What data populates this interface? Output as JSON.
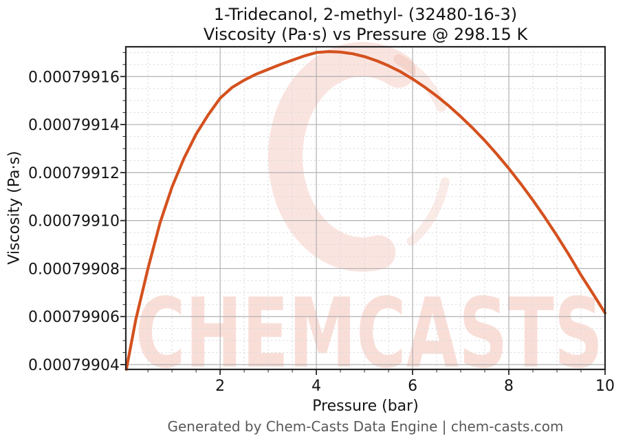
{
  "header": {
    "title_line1": "1-Tridecanol, 2-methyl- (32480-16-3)",
    "title_line2": "Viscosity (Pa·s) vs Pressure @ 298.15 K"
  },
  "footer": {
    "credit": "Generated by Chem-Casts Data Engine | chem-casts.com"
  },
  "watermark": {
    "text": "CHEMCASTS",
    "logo_icon": "chemcasts-c-swirl-logo"
  },
  "colors": {
    "line": "#d4511e",
    "watermark_pink": "#e25a3a",
    "grid_major": "#b0b0b0",
    "grid_minor": "#dadada",
    "spine": "#262626",
    "tick_text": "#141414",
    "footer_text": "#58585a"
  },
  "chart_data": {
    "type": "line",
    "title": "1-Tridecanol, 2-methyl- (32480-16-3) — Viscosity (Pa·s) vs Pressure @ 298.15 K",
    "compound": "1-Tridecanol, 2-methyl-",
    "cas_number": "32480-16-3",
    "temperature": "298.15 K",
    "xlabel": "Pressure (bar)",
    "ylabel": "Viscosity (Pa·s)",
    "xlim": [
      0.04,
      10
    ],
    "ylim": [
      0.000799038,
      0.0007991724
    ],
    "xticks": [
      2,
      4,
      6,
      8,
      10
    ],
    "xtick_labels": [
      "2",
      "4",
      "6",
      "8",
      "10"
    ],
    "yticks": [
      0.00079904,
      0.00079906,
      0.00079908,
      0.0007991,
      0.00079912,
      0.00079914,
      0.00079916
    ],
    "ytick_labels": [
      "0.00079904",
      "0.00079906",
      "0.00079908",
      "0.00079910",
      "0.00079912",
      "0.00079914",
      "0.00079916"
    ],
    "x_minor_tick_step": 0.5,
    "y_minor_tick_step": 5e-09,
    "grid": {
      "major": "solid",
      "minor": "dashed"
    },
    "legend": "none",
    "series": [
      {
        "name": "Viscosity vs Pressure @ 298.15 K",
        "x": [
          0.05,
          0.25,
          0.5,
          0.75,
          1.0,
          1.25,
          1.5,
          1.75,
          2.0,
          2.25,
          2.5,
          2.75,
          3.0,
          3.25,
          3.5,
          3.75,
          4.0,
          4.25,
          4.5,
          4.75,
          5.0,
          5.25,
          5.5,
          5.75,
          6.0,
          6.25,
          6.5,
          6.75,
          7.0,
          7.25,
          7.5,
          7.75,
          8.0,
          8.25,
          8.5,
          8.75,
          9.0,
          9.25,
          9.5,
          9.75,
          10.0
        ],
        "y": [
          0.000799038,
          0.000799059,
          0.00079908,
          0.000799099,
          0.000799114,
          0.000799126,
          0.000799136,
          0.000799144,
          0.000799151,
          0.0007991555,
          0.0007991585,
          0.000799161,
          0.000799163,
          0.000799165,
          0.0007991668,
          0.0007991686,
          0.00079917,
          0.0007991704,
          0.0007991702,
          0.0007991695,
          0.0007991683,
          0.0007991666,
          0.0007991645,
          0.000799162,
          0.000799159,
          0.0007991556,
          0.0007991519,
          0.0007991478,
          0.0007991433,
          0.0007991385,
          0.0007991333,
          0.0007991277,
          0.0007991217,
          0.0007991153,
          0.0007991085,
          0.0007991013,
          0.0007990937,
          0.0007990857,
          0.0007990773,
          0.0007990695,
          0.0007990615
        ]
      }
    ]
  }
}
